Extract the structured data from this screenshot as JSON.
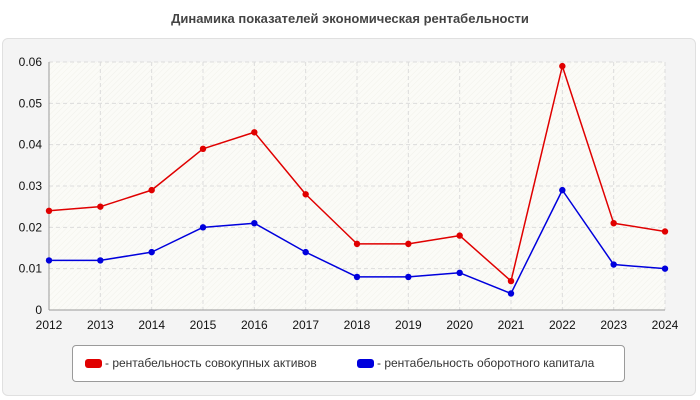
{
  "chart_data": {
    "type": "line",
    "title": "Динамика показателей экономическая рентабельности",
    "categories": [
      "2012",
      "2013",
      "2014",
      "2015",
      "2016",
      "2017",
      "2018",
      "2019",
      "2020",
      "2021",
      "2022",
      "2023",
      "2024"
    ],
    "series": [
      {
        "name": "- рентабельность совокупных активов",
        "color": "#e00000",
        "values": [
          0.024,
          0.025,
          0.029,
          0.039,
          0.043,
          0.028,
          0.016,
          0.016,
          0.018,
          0.007,
          0.059,
          0.021,
          0.019
        ]
      },
      {
        "name": "- рентабельность оборотного капитала",
        "color": "#0000dd",
        "values": [
          0.012,
          0.012,
          0.014,
          0.02,
          0.021,
          0.014,
          0.008,
          0.008,
          0.009,
          0.004,
          0.029,
          0.011,
          0.01
        ]
      }
    ],
    "y_ticks": [
      "0",
      "0.01",
      "0.02",
      "0.03",
      "0.04",
      "0.05",
      "0.06"
    ],
    "ylim": [
      0,
      0.06
    ],
    "grid": true,
    "legend_position": "bottom"
  }
}
